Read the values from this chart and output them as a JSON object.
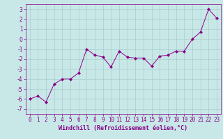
{
  "x": [
    0,
    1,
    2,
    3,
    4,
    5,
    6,
    7,
    8,
    9,
    10,
    11,
    12,
    13,
    14,
    15,
    16,
    17,
    18,
    19,
    20,
    21,
    22,
    23
  ],
  "y": [
    -6.0,
    -5.7,
    -6.3,
    -4.5,
    -4.0,
    -4.0,
    -3.4,
    -1.0,
    -1.6,
    -1.8,
    -2.8,
    -1.2,
    -1.8,
    -1.9,
    -1.9,
    -2.7,
    -1.7,
    -1.6,
    -1.2,
    -1.2,
    0.0,
    0.7,
    3.0,
    2.1
  ],
  "line_color": "#880088",
  "marker": "D",
  "marker_size": 2.0,
  "bg_color": "#c8e8e8",
  "grid_color": "#b0d0d0",
  "xlabel": "Windchill (Refroidissement éolien,°C)",
  "xlabel_fontsize": 6.0,
  "tick_fontsize": 5.5,
  "ylim": [
    -7.5,
    3.5
  ],
  "yticks": [
    -7,
    -6,
    -5,
    -4,
    -3,
    -2,
    -1,
    0,
    1,
    2,
    3
  ],
  "xticks": [
    0,
    1,
    2,
    3,
    4,
    5,
    6,
    7,
    8,
    9,
    10,
    11,
    12,
    13,
    14,
    15,
    16,
    17,
    18,
    19,
    20,
    21,
    22,
    23
  ],
  "xlim": [
    -0.5,
    23.5
  ]
}
